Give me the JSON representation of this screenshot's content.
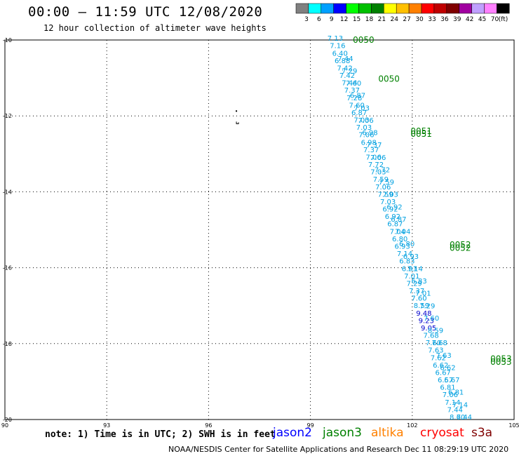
{
  "header": {
    "title": "00:00 – 11:59 UTC 12/08/2020",
    "subtitle": "12 hour collection of altimeter wave heights"
  },
  "legend": {
    "unit_label": "(ft)",
    "items": [
      {
        "label": "3",
        "color": "#808080"
      },
      {
        "label": "6",
        "color": "#00ffff"
      },
      {
        "label": "9",
        "color": "#00a0ff"
      },
      {
        "label": "12",
        "color": "#0000ff"
      },
      {
        "label": "15",
        "color": "#00ff00"
      },
      {
        "label": "18",
        "color": "#00c000"
      },
      {
        "label": "21",
        "color": "#008000"
      },
      {
        "label": "24",
        "color": "#ffff00"
      },
      {
        "label": "27",
        "color": "#ffc000"
      },
      {
        "label": "30",
        "color": "#ff8000"
      },
      {
        "label": "33",
        "color": "#ff0000"
      },
      {
        "label": "36",
        "color": "#c00000"
      },
      {
        "label": "39",
        "color": "#800000"
      },
      {
        "label": "42",
        "color": "#a000a0"
      },
      {
        "label": "45",
        "color": "#c0a0ff"
      },
      {
        "label": "70",
        "color": "#ff80ff"
      },
      {
        "label": "",
        "color": "#000000"
      }
    ]
  },
  "note": "note: 1) Time is in UTC; 2) SWH is in feet",
  "satellites": [
    {
      "name": "jason2",
      "color": "#0000ff"
    },
    {
      "name": "jason3",
      "color": "#008000"
    },
    {
      "name": "altika",
      "color": "#ff8000"
    },
    {
      "name": "cryosat",
      "color": "#ff0000"
    },
    {
      "name": "s3a",
      "color": "#800000"
    }
  ],
  "footer": "NOAA/NESDIS Center for Satellite Applications and Research    Dec 11 08:29:19 UTC 2020",
  "chart_data": {
    "type": "scatter",
    "title": "00:00 – 11:59 UTC 12/08/2020",
    "xlim": [
      90,
      105
    ],
    "ylim": [
      -20,
      -10
    ],
    "x_ticks": [
      90,
      93,
      96,
      99,
      102,
      105
    ],
    "y_ticks": [
      -10,
      -12,
      -14,
      -16,
      -18,
      -20
    ],
    "grid": true,
    "island": {
      "lon": 96.84,
      "lat": -12.15
    },
    "time_labels": [
      {
        "text": "0050",
        "lon": 100.25,
        "lat": -10.0
      },
      {
        "text": "0050",
        "lon": 101.0,
        "lat": -11.03
      },
      {
        "text": "0051",
        "lon": 101.95,
        "lat": -12.4
      },
      {
        "text": "0051",
        "lon": 101.95,
        "lat": -12.48
      },
      {
        "text": "0052",
        "lon": 103.1,
        "lat": -15.4
      },
      {
        "text": "0052",
        "lon": 103.1,
        "lat": -15.48
      },
      {
        "text": "0053",
        "lon": 104.3,
        "lat": -18.4
      },
      {
        "text": "0053",
        "lon": 104.3,
        "lat": -18.48
      }
    ],
    "tracks": [
      {
        "name": "track A",
        "start": {
          "lon": 99.5,
          "lat": -10.02
        },
        "end": {
          "lon": 103.1,
          "lat": -20.0
        },
        "values": [
          "7.13",
          "7.16",
          "6.40",
          "6.88",
          "7.42",
          "7.42",
          "7.44",
          "7.37",
          "7.28",
          "7.60",
          "6.87",
          "7.03",
          "7.03",
          "7.06",
          "6.98",
          "7.37",
          "7.06",
          "7.72",
          "7.03",
          "7.59",
          "7.06",
          "7.59",
          "7.03",
          "6.92",
          "6.92",
          "6.87",
          "7.04",
          "6.80",
          "6.93",
          "7.14",
          "6.83",
          "6.91",
          "7.01",
          "7.29",
          "7.37",
          "7.60",
          "8.59",
          "9.48",
          "9.23",
          "9.05",
          "7.68",
          "7.60",
          "7.63",
          "7.62",
          "6.62",
          "6.67",
          "6.57",
          "6.81",
          "7.06",
          "7.14",
          "7.44",
          "8.60"
        ],
        "blue_indices": [
          37,
          38,
          39
        ]
      },
      {
        "name": "track B",
        "start": {
          "lon": 99.8,
          "lat": -10.55
        },
        "end": {
          "lon": 103.3,
          "lat": -20.0
        },
        "values": [
          "7.44",
          "7.29",
          "7.60",
          "6.87",
          "7.03",
          "7.06",
          "6.98",
          "7.37",
          "7.06",
          "7.72",
          "7.59",
          "7.03",
          "6.92",
          "6.87",
          "7.04",
          "6.80",
          "6.93",
          "7.14",
          "6.83",
          "7.01",
          "7.29",
          "7.60",
          "8.59",
          "7.68",
          "7.63",
          "6.62",
          "6.67",
          "6.81",
          "7.14",
          "7.44"
        ],
        "blue_indices": []
      }
    ]
  }
}
